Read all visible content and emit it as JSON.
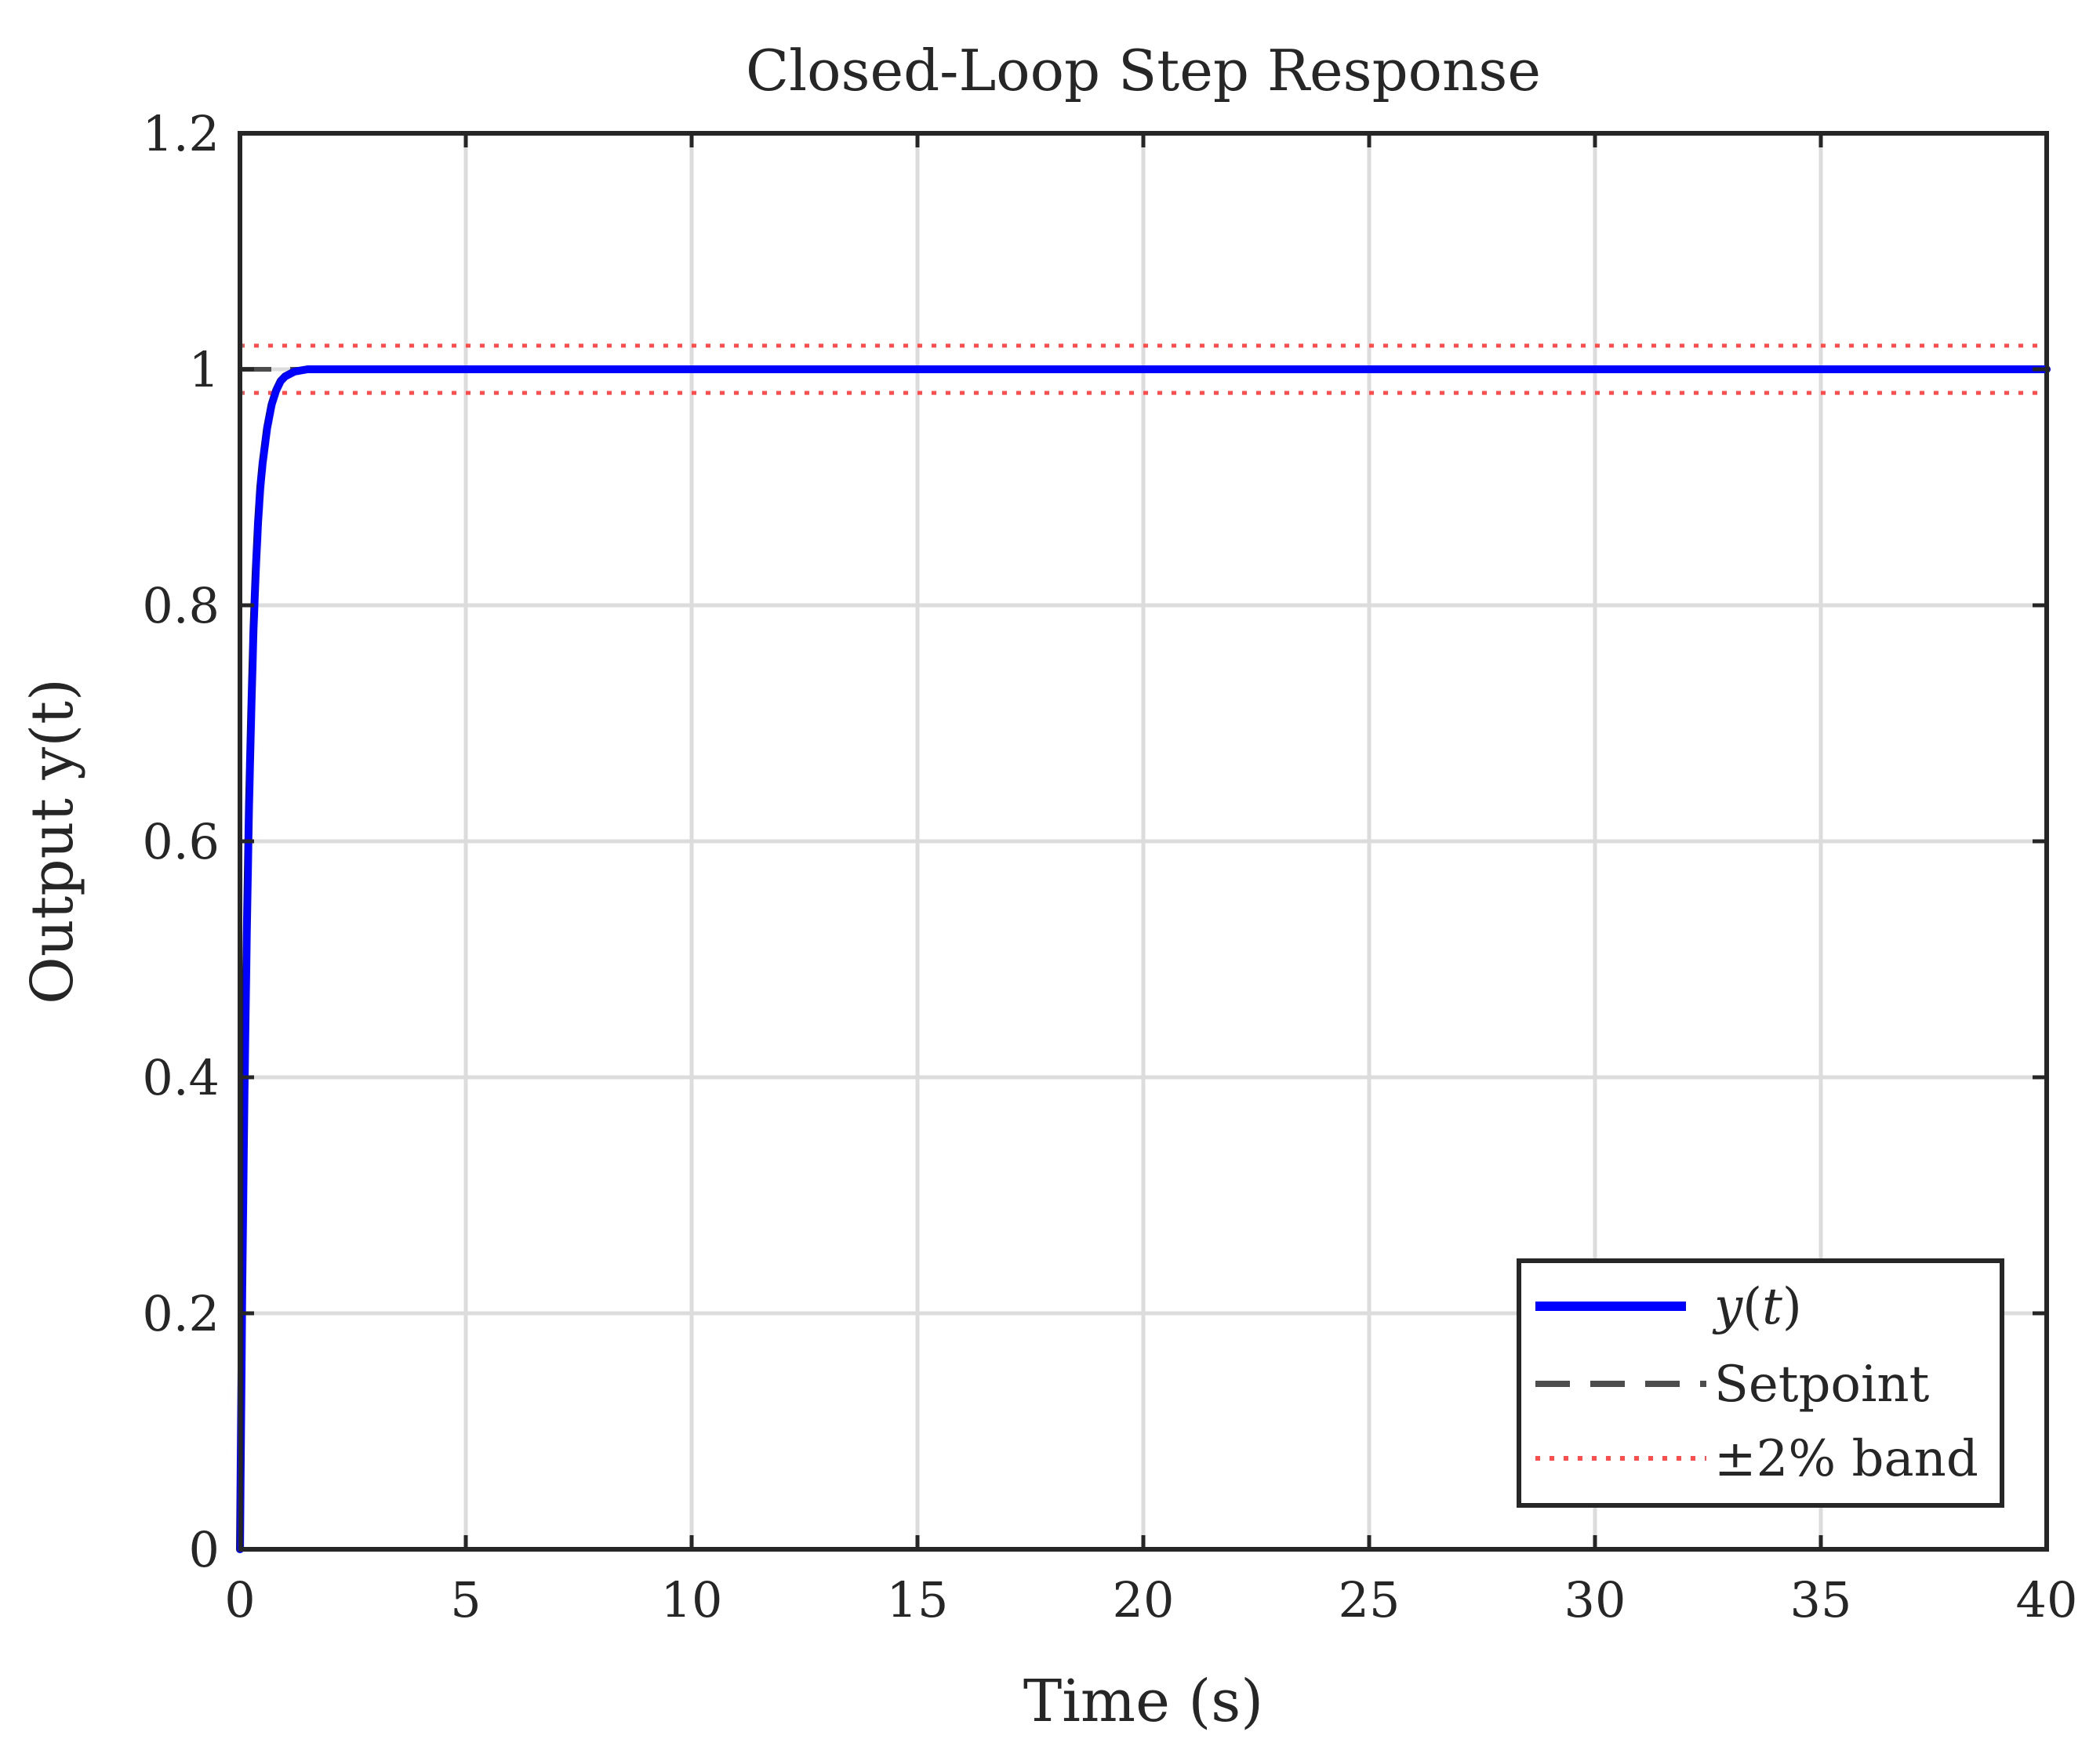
{
  "chart_data": {
    "type": "line",
    "title": "Closed-Loop Step Response",
    "xlabel": "Time (s)",
    "ylabel": "Output y(t)",
    "xlim": [
      0,
      40
    ],
    "ylim": [
      0,
      1.2
    ],
    "xticks": [
      0,
      5,
      10,
      15,
      20,
      25,
      30,
      35,
      40
    ],
    "yticks": [
      0,
      0.2,
      0.4,
      0.6,
      0.8,
      1,
      1.2
    ],
    "xtick_labels": [
      "0",
      "5",
      "10",
      "15",
      "20",
      "25",
      "30",
      "35",
      "40"
    ],
    "ytick_labels": [
      "0",
      "0.2",
      "0.4",
      "0.6",
      "0.8",
      "1",
      "1.2"
    ],
    "grid": true,
    "legend_position": "bottom-right",
    "series": [
      {
        "name": "y(t)",
        "color": "#0000ff",
        "style": "solid",
        "x": [
          0,
          0.05,
          0.1,
          0.15,
          0.2,
          0.25,
          0.3,
          0.35,
          0.4,
          0.45,
          0.5,
          0.6,
          0.7,
          0.8,
          0.9,
          1.0,
          1.2,
          1.5,
          2,
          3,
          5,
          10,
          15,
          20,
          25,
          30,
          35,
          40
        ],
        "y": [
          0,
          0.22,
          0.39,
          0.52,
          0.63,
          0.71,
          0.78,
          0.83,
          0.87,
          0.9,
          0.92,
          0.95,
          0.97,
          0.982,
          0.99,
          0.994,
          0.998,
          1.0,
          1.0,
          1.0,
          1.0,
          1.0,
          1.0,
          1.0,
          1.0,
          1.0,
          1.0,
          1.0
        ]
      },
      {
        "name": "Setpoint",
        "color": "#4d4d4d",
        "style": "dashed",
        "x": [
          0,
          40
        ],
        "y": [
          1,
          1
        ]
      },
      {
        "name": "±2% band",
        "color": "#ff4d4d",
        "style": "dotted",
        "x": [
          0,
          40
        ],
        "y": [
          1.02,
          1.02
        ]
      },
      {
        "name": "",
        "color": "#ff4d4d",
        "style": "dotted",
        "x": [
          0,
          40
        ],
        "y": [
          0.98,
          0.98
        ]
      }
    ],
    "legend": {
      "entries": [
        {
          "label_main": "y",
          "label_paren": "(",
          "label_var": "t",
          "label_close": ")",
          "plain": ""
        },
        {
          "plain": "Setpoint"
        },
        {
          "plain": "±2% band"
        }
      ]
    }
  }
}
